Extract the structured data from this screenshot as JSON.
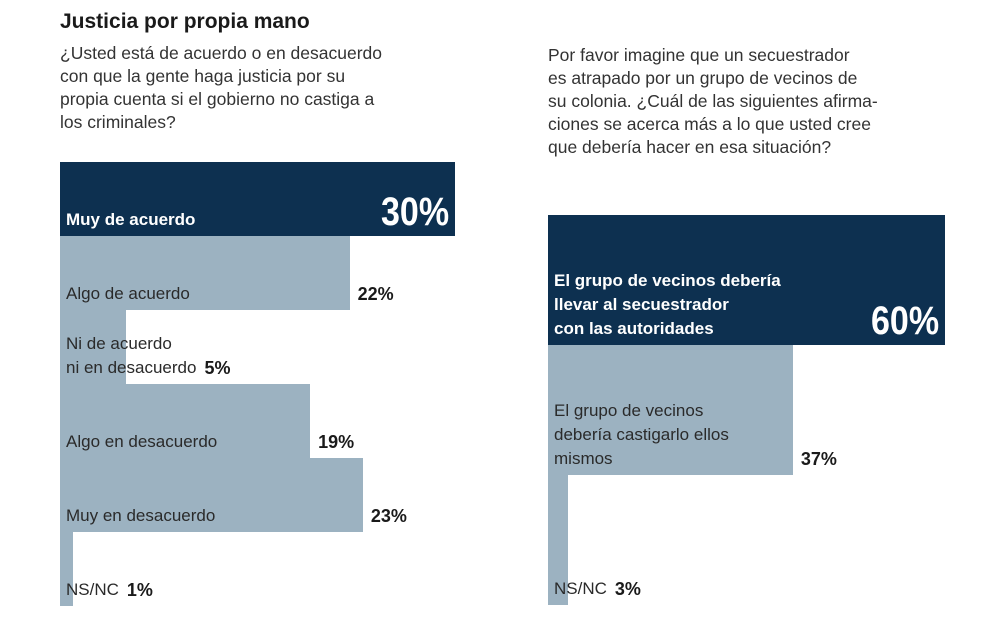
{
  "chart_data": [
    {
      "type": "bar",
      "orientation": "horizontal",
      "title": "Justicia por propia mano",
      "subtitle": "¿Usted está de acuerdo o en desacuerdo\ncon que la gente haga justicia por su\npropia cuenta si el gobierno no castiga a\nlos criminales?",
      "categories": [
        "Muy de acuerdo",
        "Algo de acuerdo",
        "Ni de acuerdo\nni en desacuerdo",
        "Algo en desacuerdo",
        "Muy en desacuerdo",
        "NS/NC"
      ],
      "values": [
        30,
        22,
        5,
        19,
        23,
        1
      ],
      "value_labels": [
        "30%",
        "22%",
        "5%",
        "19%",
        "23%",
        "1%"
      ],
      "colors": [
        "#0d3050",
        "#9cb2c1",
        "#9cb2c1",
        "#9cb2c1",
        "#9cb2c1",
        "#9cb2c1"
      ]
    },
    {
      "type": "bar",
      "orientation": "horizontal",
      "subtitle": "Por favor imagine que un secuestrador\nes atrapado por un grupo de vecinos de\nsu colonia. ¿Cuál de las siguientes afirma-\nciones se acerca más a lo que usted cree\nque debería hacer en esa situación?",
      "categories": [
        "El grupo de vecinos debería\nllevar al secuestrador\ncon las autoridades",
        "El grupo de vecinos\ndebería castigarlo ellos\nmismos",
        "NS/NC"
      ],
      "values": [
        60,
        37,
        3
      ],
      "value_labels": [
        "60%",
        "37%",
        "3%"
      ],
      "colors": [
        "#0d3050",
        "#9cb2c1",
        "#9cb2c1"
      ]
    }
  ]
}
